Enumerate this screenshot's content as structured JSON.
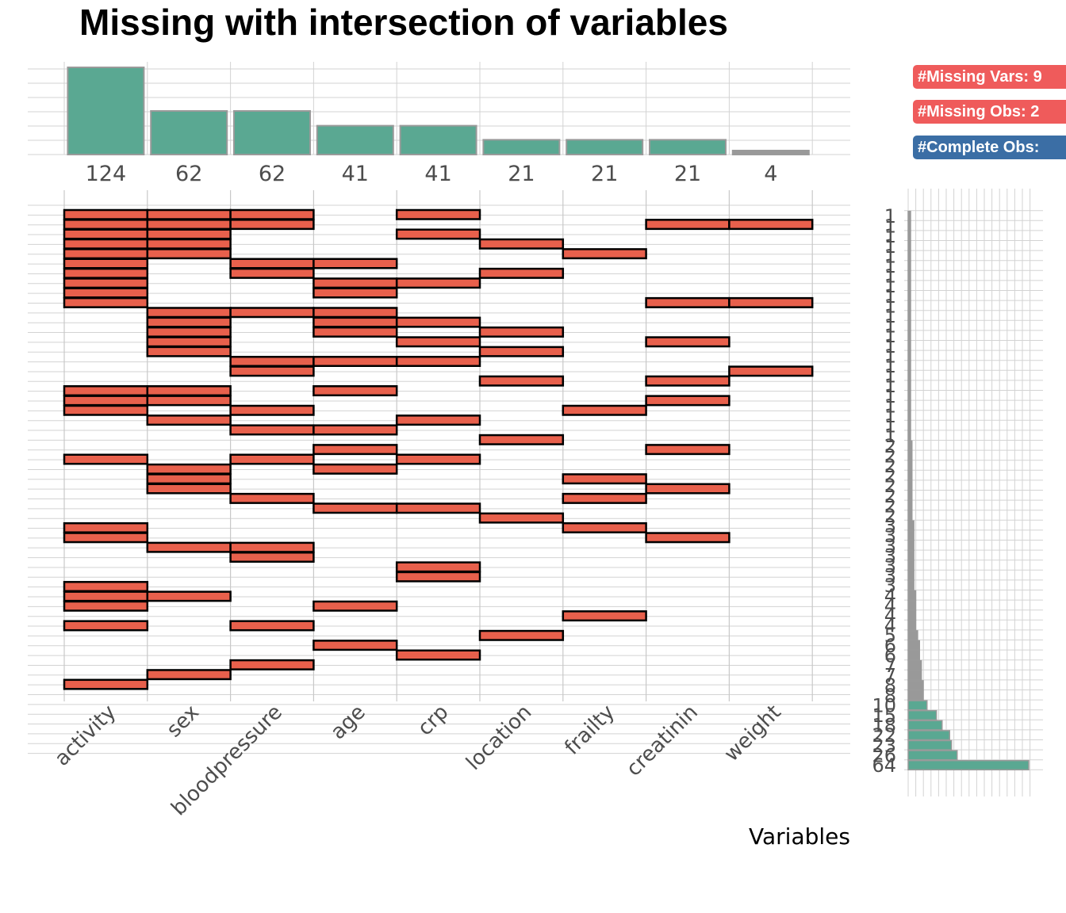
{
  "colors": {
    "set_bar": "#5aa892",
    "small_bar": "#999999",
    "cell": "#e8604c",
    "missing_badge": "#ef5b5b",
    "complete_badge": "#3b6ea5"
  },
  "legend": {
    "missing_vars": "#Missing Vars: 9",
    "missing_obs": "#Missing Obs: 2",
    "complete_obs": "#Complete Obs:"
  },
  "chart_data": {
    "type": "upset",
    "title": "Missing with intersection of variables",
    "xlabel": "Variables",
    "variables": [
      "activity",
      "sex",
      "bloodpressure",
      "age",
      "crp",
      "location",
      "frailty",
      "creatinin",
      "weight"
    ],
    "set_sizes": [
      124,
      62,
      62,
      41,
      41,
      21,
      21,
      21,
      4
    ],
    "set_size_labels": [
      "124",
      "62",
      "62",
      "41",
      "41",
      "21",
      "21",
      "21",
      "4"
    ],
    "intersection_sizes": [
      1,
      1,
      1,
      1,
      1,
      1,
      1,
      1,
      1,
      1,
      1,
      1,
      1,
      1,
      1,
      1,
      1,
      1,
      1,
      1,
      1,
      1,
      1,
      2,
      2,
      2,
      2,
      2,
      2,
      2,
      2,
      3,
      3,
      3,
      3,
      3,
      3,
      3,
      4,
      4,
      4,
      4,
      5,
      6,
      6,
      7,
      7,
      8,
      8,
      10,
      15,
      18,
      22,
      23,
      26,
      64
    ],
    "intersections": [
      [
        0,
        1,
        2,
        4
      ],
      [
        0,
        1,
        2,
        7,
        8
      ],
      [
        0,
        1,
        4
      ],
      [
        0,
        1,
        5
      ],
      [
        0,
        1,
        6
      ],
      [
        0,
        2,
        3
      ],
      [
        0,
        2,
        5
      ],
      [
        0,
        3,
        4
      ],
      [
        0,
        3
      ],
      [
        0,
        7,
        8
      ],
      [
        1,
        2,
        3
      ],
      [
        1,
        3,
        4
      ],
      [
        1,
        3,
        5
      ],
      [
        1,
        4,
        7
      ],
      [
        1,
        5
      ],
      [
        2,
        3,
        4
      ],
      [
        2,
        8
      ],
      [
        5,
        7
      ],
      [
        0,
        1,
        3
      ],
      [
        0,
        1,
        7
      ],
      [
        0,
        2,
        6
      ],
      [
        1,
        4
      ],
      [
        2,
        3
      ],
      [
        5
      ],
      [
        3,
        7
      ],
      [
        0,
        2,
        4
      ],
      [
        1,
        3
      ],
      [
        1,
        6
      ],
      [
        1,
        7
      ],
      [
        2,
        6
      ],
      [
        3,
        4
      ],
      [
        5
      ],
      [
        0,
        6
      ],
      [
        0,
        7
      ],
      [
        1,
        2
      ],
      [
        2
      ],
      [
        4
      ],
      [
        4
      ],
      [
        0
      ],
      [
        0,
        1
      ],
      [
        0,
        3
      ],
      [
        6
      ],
      [
        0,
        2
      ],
      [
        5
      ],
      [
        3
      ],
      [
        4
      ],
      [
        2
      ],
      [
        1
      ],
      [
        0
      ],
      [],
      [],
      [],
      [],
      [],
      [],
      []
    ]
  }
}
